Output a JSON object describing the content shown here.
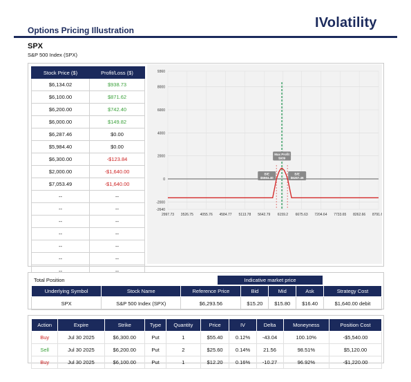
{
  "header": {
    "title": "Options Pricing Illustration",
    "brand": "IVolatility"
  },
  "underlying": {
    "symbol": "SPX",
    "name": "S&P 500 Index (SPX)"
  },
  "pl_table": {
    "headers": [
      "Stock Price ($)",
      "Profit/Loss ($)"
    ],
    "rows": [
      {
        "price": "$6,134.02",
        "pl": "$938.73",
        "tone": "pos"
      },
      {
        "price": "$6,100.00",
        "pl": "$871.62",
        "tone": "pos"
      },
      {
        "price": "$6,200.00",
        "pl": "$742.40",
        "tone": "pos"
      },
      {
        "price": "$6,000.00",
        "pl": "$149.82",
        "tone": "pos"
      },
      {
        "price": "$6,287.46",
        "pl": "$0.00",
        "tone": "zero"
      },
      {
        "price": "$5,984.40",
        "pl": "$0.00",
        "tone": "zero"
      },
      {
        "price": "$6,300.00",
        "pl": "-$123.84",
        "tone": "neg"
      },
      {
        "price": "$2,000.00",
        "pl": "-$1,640.00",
        "tone": "neg"
      },
      {
        "price": "$7,053.49",
        "pl": "-$1,640.00",
        "tone": "neg"
      },
      {
        "price": "--",
        "pl": "--",
        "tone": "zero"
      },
      {
        "price": "--",
        "pl": "--",
        "tone": "zero"
      },
      {
        "price": "--",
        "pl": "--",
        "tone": "zero"
      },
      {
        "price": "--",
        "pl": "--",
        "tone": "zero"
      },
      {
        "price": "--",
        "pl": "--",
        "tone": "zero"
      },
      {
        "price": "--",
        "pl": "--",
        "tone": "zero"
      },
      {
        "price": "--",
        "pl": "--",
        "tone": "zero"
      },
      {
        "price": "--",
        "pl": "--",
        "tone": "zero"
      }
    ]
  },
  "chart_data": {
    "type": "line",
    "ylim": [
      -2640,
      9360
    ],
    "xlim": [
      2997.73,
      8791.67
    ],
    "y_ticks": [
      9360,
      8000,
      6000,
      4000,
      2000,
      0,
      -2000,
      -2640
    ],
    "y_tick_labels": [
      "9360",
      "8000",
      "6000",
      "4000",
      "2000",
      "0",
      "-2000",
      "-2640"
    ],
    "x_ticks": [
      2997.73,
      3526.75,
      4055.76,
      4584.77,
      5113.78,
      5642.79,
      6159.2,
      6675.63,
      7204.64,
      7733.65,
      8262.66,
      8791.67
    ],
    "x_tick_labels": [
      "2997.73",
      "3526.75",
      "4055.76",
      "4584.77",
      "5113.78",
      "5642.79",
      "6159.2",
      "6675.63",
      "7204.64",
      "7733.65",
      "8262.66",
      "8791.67"
    ],
    "series": [
      {
        "x": [
          2997.73,
          5880,
          5984.4,
          6050,
          6100,
          6134.02,
          6200,
          6260,
          6287.46,
          6300,
          6400,
          8791.67
        ],
        "y": [
          -1640,
          -1640,
          0,
          600,
          871.62,
          938.73,
          742.4,
          300,
          0,
          -123.84,
          -1640,
          -1640
        ]
      }
    ],
    "dashed_green": {
      "x": 6134.02,
      "ytop": 8400
    },
    "dashed_red": [
      5984.4,
      6287.46
    ],
    "annotations": [
      {
        "label": "Max Profit",
        "value": "$939",
        "x": 6134.02,
        "y": 938.73
      },
      {
        "label": "B/E",
        "value": "$5984.40",
        "x": 5984.4,
        "y": 0
      },
      {
        "label": "B/E",
        "value": "$6287.46",
        "x": 6287.46,
        "y": 0
      }
    ],
    "colors": {
      "line": "#d42a2a",
      "zero": "#333333",
      "green": "#6bb58a",
      "grid": "#dcdcdc"
    }
  },
  "position": {
    "title": "Total Position",
    "indicative_header": "Indicative market price",
    "headers": [
      "Underlying Symbol",
      "Stock Name",
      "Reference Price",
      "Bid",
      "Mid",
      "Ask",
      "Strategy Cost"
    ],
    "row": [
      "SPX",
      "S&P 500 Index (SPX)",
      "$6,293.56",
      "$15.20",
      "$15.80",
      "$16.40",
      "$1,640.00 debit"
    ]
  },
  "legs": {
    "headers": [
      "Action",
      "Expire",
      "Strike",
      "Type",
      "Quantity",
      "Price",
      "IV",
      "Delta",
      "Moneyness",
      "Position Cost"
    ],
    "rows": [
      [
        "Buy",
        "Jul 30 2025",
        "$6,300.00",
        "Put",
        "1",
        "$55.40",
        "0.12%",
        "-43.04",
        "100.10%",
        "-$5,540.00"
      ],
      [
        "Sell",
        "Jul 30 2025",
        "$6,200.00",
        "Put",
        "2",
        "$25.60",
        "0.14%",
        "21.56",
        "98.51%",
        "$5,120.00"
      ],
      [
        "Buy",
        "Jul 30 2025",
        "$6,100.00",
        "Put",
        "1",
        "$12.20",
        "0.16%",
        "-10.27",
        "96.92%",
        "-$1,220.00"
      ]
    ]
  }
}
